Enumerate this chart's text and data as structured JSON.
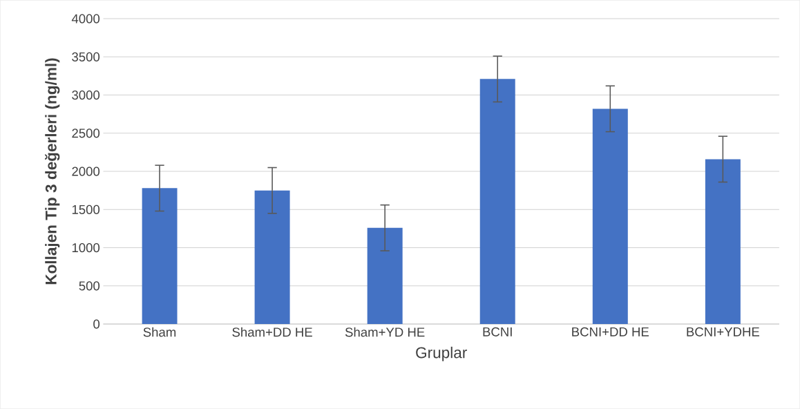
{
  "chart_data": {
    "type": "bar",
    "xlabel": "Gruplar",
    "ylabel": "Kollajen Tip 3 değerleri (ng/ml)",
    "categories": [
      "Sham",
      "Sham+DD HE",
      "Sham+YD HE",
      "BCNI",
      "BCNI+DD HE",
      "BCNI+YDHE"
    ],
    "values": [
      1780,
      1750,
      1260,
      3210,
      2820,
      2160
    ],
    "errors": [
      300,
      300,
      300,
      300,
      300,
      300
    ],
    "color": "#4472c4",
    "ylim": [
      0,
      4000
    ],
    "yticks": [
      0,
      500,
      1000,
      1500,
      2000,
      2500,
      3000,
      3500,
      4000
    ],
    "grid": "y"
  }
}
